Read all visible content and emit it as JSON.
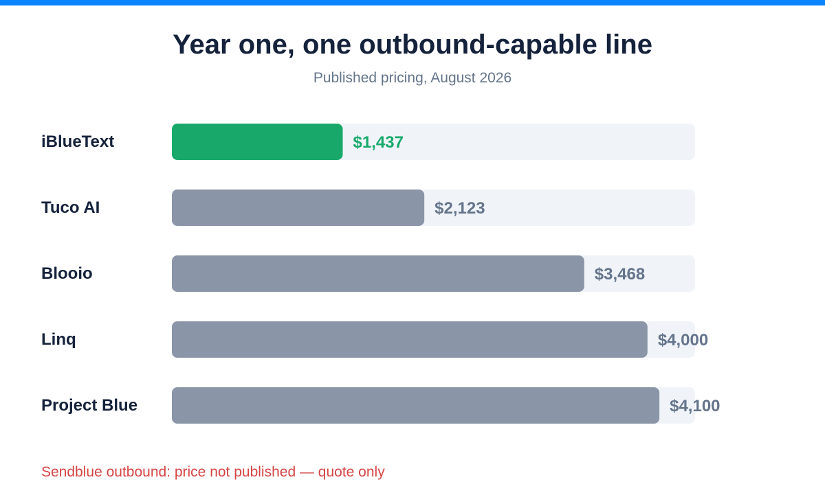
{
  "colors": {
    "top_bar": "#0a84ff",
    "highlight": "#18a96a",
    "bar": "#8b95a8",
    "track": "#f0f4f9",
    "label": "#15223b",
    "value": "#64748b"
  },
  "chart_data": {
    "type": "bar",
    "orientation": "horizontal",
    "title": "Year one, one outbound-capable line",
    "subtitle": "Published pricing, August 2026",
    "categories": [
      "iBlueText",
      "Tuco AI",
      "Blooio",
      "Linq",
      "Project Blue"
    ],
    "values": [
      1437,
      2123,
      3468,
      4000,
      4100
    ],
    "value_labels": [
      "$1,437",
      "$2,123",
      "$3,468",
      "$4,000",
      "$4,100"
    ],
    "highlighted_category": "iBlueText",
    "xlim": [
      0,
      4400
    ],
    "grid": false,
    "legend": "none"
  },
  "footnote": "Sendblue outbound: price not published — quote only"
}
